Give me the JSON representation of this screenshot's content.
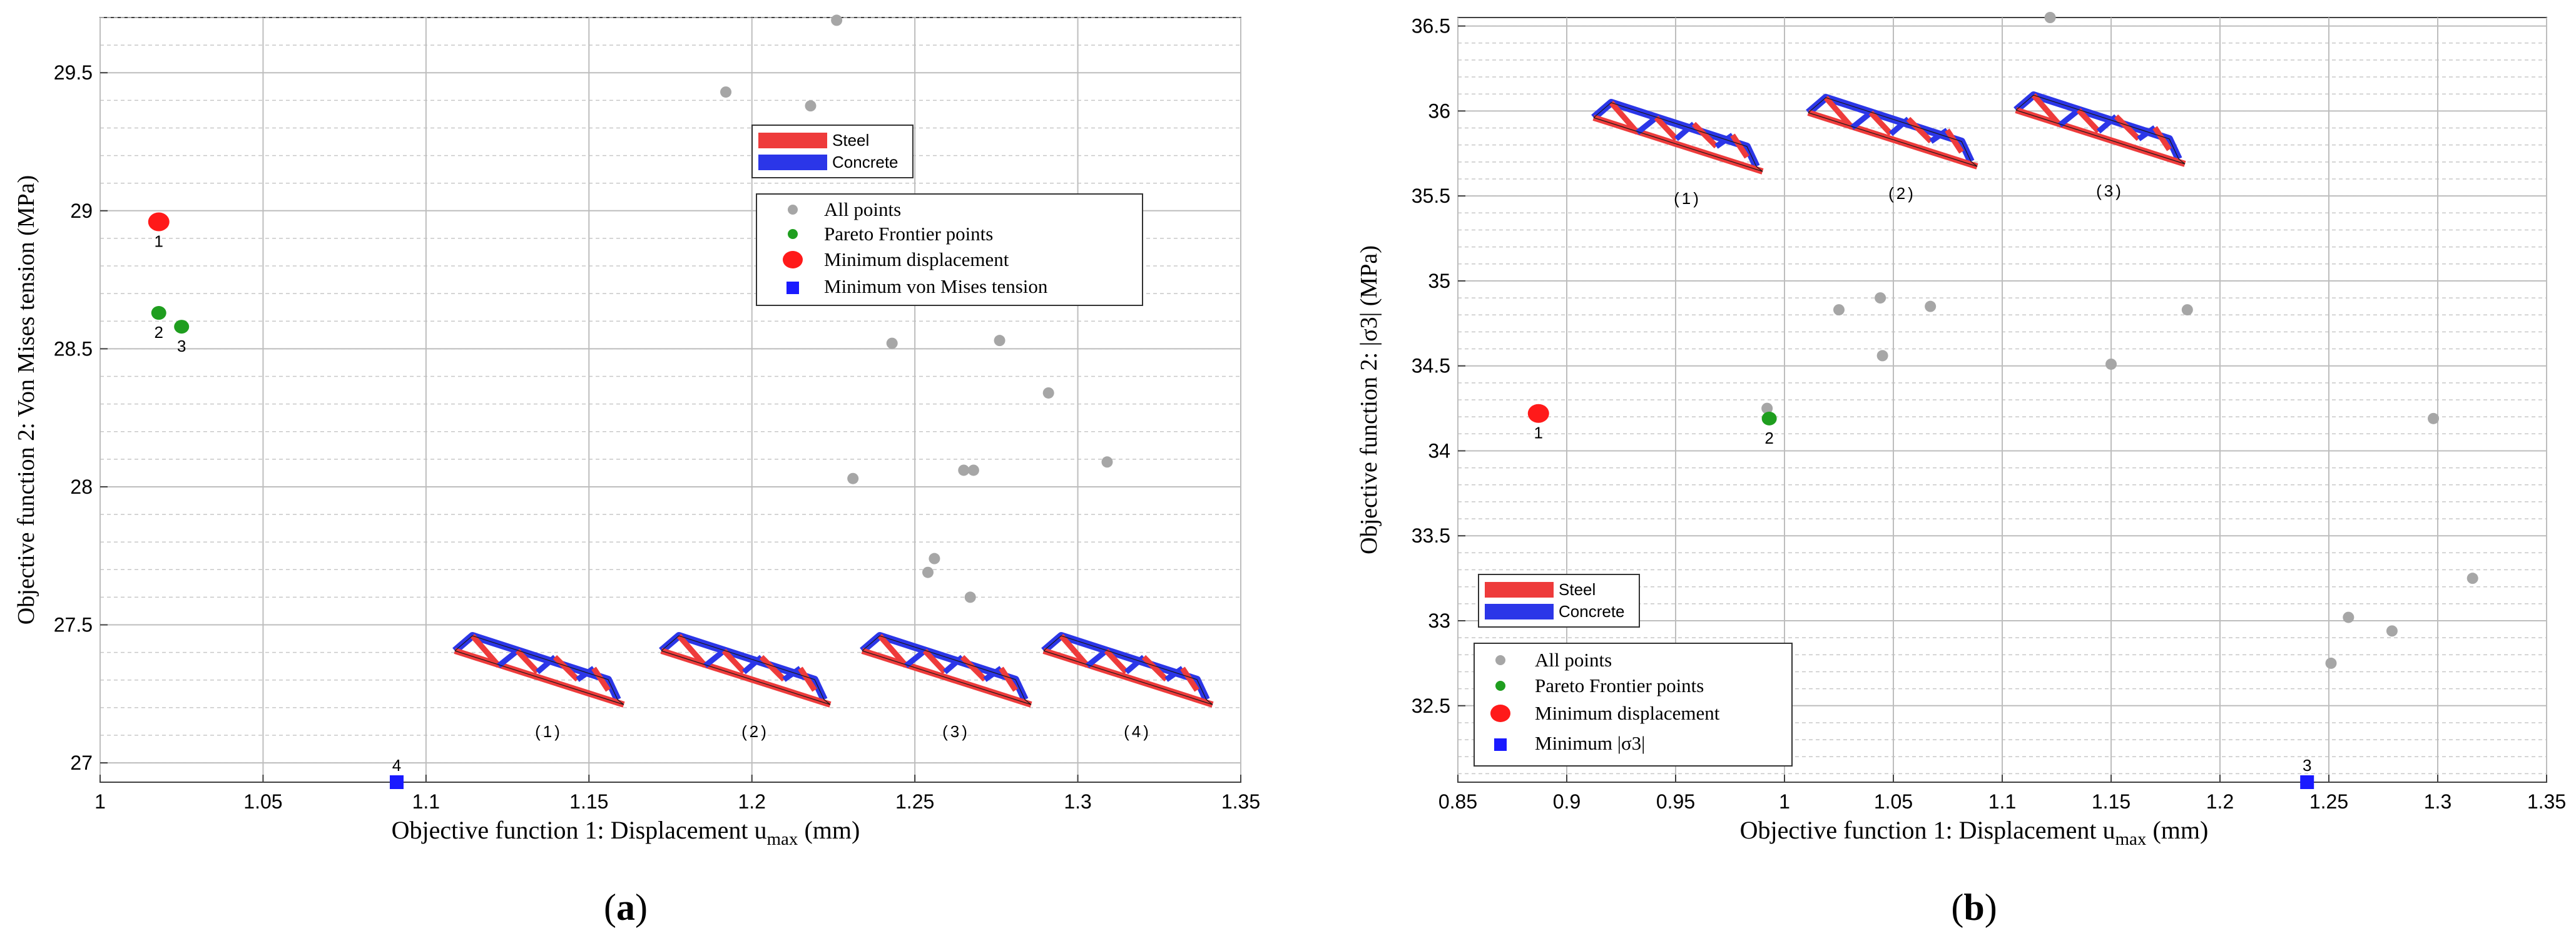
{
  "chart_data": [
    {
      "panel_label": "a",
      "type": "scatter",
      "xlabel": "Objective function 1: Displacement u",
      "xlabel_sub": "max",
      "xlabel_unit": " (mm)",
      "ylabel": "Objective function 2: Von Mises tension (MPa)",
      "xlim": [
        1.0,
        1.35
      ],
      "ylim": [
        26.93,
        29.7
      ],
      "xticks": [
        1,
        1.05,
        1.1,
        1.15,
        1.2,
        1.25,
        1.3,
        1.35
      ],
      "xtick_labels": [
        "1",
        "1.05",
        "1.1",
        "1.15",
        "1.2",
        "1.25",
        "1.3",
        "1.35"
      ],
      "yticks": [
        27,
        27.5,
        28,
        28.5,
        29,
        29.5
      ],
      "ytick_labels": [
        "27",
        "27.5",
        "28",
        "28.5",
        "29",
        "29.5"
      ],
      "grid": true,
      "legend_materials": [
        {
          "label": "Steel",
          "color": "#ee3b3b"
        },
        {
          "label": "Concrete",
          "color": "#2b36e8"
        }
      ],
      "legend": [
        "All points",
        "Pareto Frontier points",
        "Minimum displacement",
        "Minimum von Mises tension"
      ],
      "series": [
        {
          "name": "All points",
          "color": "#a6a6a6",
          "marker": "circle",
          "x": [
            1.226,
            1.192,
            1.218,
            1.243,
            1.276,
            1.291,
            1.231,
            1.309,
            1.265,
            1.268,
            1.256,
            1.254,
            1.267
          ],
          "y": [
            29.69,
            29.43,
            29.38,
            28.52,
            28.53,
            28.34,
            28.03,
            28.09,
            28.06,
            28.06,
            27.74,
            27.69,
            27.6
          ]
        },
        {
          "name": "Pareto Frontier points",
          "color": "#1f9e1f",
          "marker": "circle",
          "x": [
            1.018,
            1.025
          ],
          "y": [
            28.63,
            28.58
          ],
          "labels": [
            "2",
            "3"
          ]
        },
        {
          "name": "Minimum displacement",
          "color": "#ff1a1a",
          "marker": "circle",
          "x": [
            1.018
          ],
          "y": [
            28.96
          ],
          "labels": [
            "1"
          ]
        },
        {
          "name": "Minimum von Mises tension",
          "color": "#1a1aff",
          "marker": "square",
          "x": [
            1.091
          ],
          "y": [
            26.93
          ],
          "labels": [
            "4"
          ]
        }
      ],
      "truss_insets": [
        "(1)",
        "(2)",
        "(3)",
        "(4)"
      ]
    },
    {
      "panel_label": "b",
      "type": "scatter",
      "xlabel": "Objective function 1: Displacement u",
      "xlabel_sub": "max",
      "xlabel_unit": " (mm)",
      "ylabel": "Objective function 2: |σ3| (MPa)",
      "xlim": [
        0.85,
        1.35
      ],
      "ylim": [
        32.05,
        36.55
      ],
      "xticks": [
        0.85,
        0.9,
        0.95,
        1,
        1.05,
        1.1,
        1.15,
        1.2,
        1.25,
        1.3,
        1.35
      ],
      "xtick_labels": [
        "0.85",
        "0.9",
        "0.95",
        "1",
        "1.05",
        "1.1",
        "1.15",
        "1.2",
        "1.25",
        "1.3",
        "1.35"
      ],
      "yticks": [
        32.5,
        33,
        33.5,
        34,
        34.5,
        35,
        35.5,
        36,
        36.5
      ],
      "ytick_labels": [
        "32.5",
        "33",
        "33.5",
        "34",
        "34.5",
        "35",
        "35.5",
        "36",
        "36.5"
      ],
      "grid": true,
      "legend_materials": [
        {
          "label": "Steel",
          "color": "#ee3b3b"
        },
        {
          "label": "Concrete",
          "color": "#2b36e8"
        }
      ],
      "legend": [
        "All points",
        "Pareto Frontier points",
        "Minimum displacement",
        "Minimum |σ3|"
      ],
      "series": [
        {
          "name": "All points",
          "color": "#a6a6a6",
          "marker": "circle",
          "x": [
            1.122,
            1.025,
            1.044,
            1.067,
            1.185,
            1.045,
            0.992,
            1.15,
            1.298,
            1.316,
            1.259,
            1.279,
            1.251
          ],
          "y": [
            36.55,
            34.83,
            34.9,
            34.85,
            34.83,
            34.56,
            34.25,
            34.51,
            34.19,
            33.25,
            33.02,
            32.94,
            32.75
          ]
        },
        {
          "name": "Pareto Frontier points",
          "color": "#1f9e1f",
          "marker": "circle",
          "x": [
            0.993
          ],
          "y": [
            34.19
          ],
          "labels": [
            "2"
          ]
        },
        {
          "name": "Minimum displacement",
          "color": "#ff1a1a",
          "marker": "circle",
          "x": [
            0.887
          ],
          "y": [
            34.22
          ],
          "labels": [
            "1"
          ]
        },
        {
          "name": "Minimum |σ3|",
          "color": "#1a1aff",
          "marker": "square",
          "x": [
            1.24
          ],
          "y": [
            32.05
          ],
          "labels": [
            "3"
          ]
        }
      ],
      "truss_insets": [
        "(1)",
        "(2)",
        "(3)"
      ]
    }
  ]
}
